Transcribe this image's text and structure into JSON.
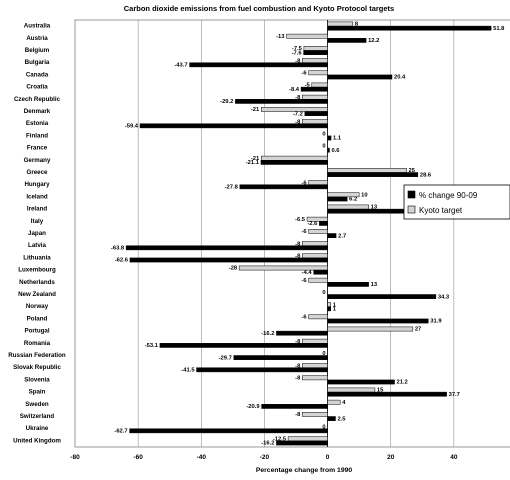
{
  "chart_data": {
    "type": "bar",
    "orientation": "horizontal",
    "title": "Carbon dioxide emissions from fuel combustion and Kyoto Protocol targets",
    "xlabel": "Percentage change from 1990",
    "ylabel": "",
    "xlim": [
      -80,
      60
    ],
    "xticks": [
      -80,
      -60,
      -40,
      -20,
      0,
      20,
      40,
      60
    ],
    "grid": true,
    "legend_position": "right",
    "categories": [
      "Australia",
      "Austria",
      "Belgium",
      "Bulgaria",
      "Canada",
      "Croatia",
      "Czech Republic",
      "Denmark",
      "Estonia",
      "Finland",
      "France",
      "Germany",
      "Greece",
      "Hungary",
      "Iceland",
      "Ireland",
      "Italy",
      "Japan",
      "Latvia",
      "Lithuania",
      "Luxembourg",
      "Netherlands",
      "New Zealand",
      "Norway",
      "Poland",
      "Portugal",
      "Romania",
      "Russian Federation",
      "Slovak Republic",
      "Slovenia",
      "Spain",
      "Sweden",
      "Switzerland",
      "Ukraine",
      "United Kingdom"
    ],
    "series": [
      {
        "name": "% change 90-09",
        "color": "#000000",
        "values": [
          51.8,
          12.2,
          -7.6,
          -43.7,
          20.4,
          -8.4,
          -29.2,
          -7.2,
          -59.4,
          1.1,
          0.6,
          -21.1,
          28.6,
          -27.8,
          6.2,
          32.4,
          -2.6,
          2.7,
          -63.8,
          -62.6,
          -4.4,
          13,
          34.3,
          1,
          31.9,
          -16.2,
          -53.1,
          -29.7,
          -41.5,
          21.2,
          37.7,
          -20.9,
          2.5,
          -62.7,
          -16.2
        ],
        "labels": [
          "51.8",
          "12.2",
          "-7.6",
          "-43.7",
          "20.4",
          "-8.4",
          "-29.2",
          "-7.2",
          "-59.4",
          "1.1",
          "0.6",
          "-21.1",
          "28.6",
          "-27.8",
          "6.2",
          "32.4",
          "-2.6",
          "2.7",
          "-63.8",
          "-62.6",
          "-4.4",
          "13",
          "34.3",
          "1",
          "31.9",
          "-16.2",
          "-53.1",
          "-29.7",
          "-41.5",
          "21.2",
          "37.7",
          "-20.9",
          "2.5",
          "-62.7",
          "-16.2"
        ]
      },
      {
        "name": "Kyoto target",
        "color": "#d4d4d4",
        "values": [
          8,
          -13,
          -7.5,
          -8,
          -6,
          -5,
          -8,
          -21,
          -8,
          0,
          0,
          -21,
          25,
          -6,
          10,
          13,
          -6.5,
          -6,
          -8,
          -8,
          -28,
          -6,
          0,
          1,
          -6,
          27,
          -8,
          0,
          -8,
          -8,
          15,
          4,
          -8,
          0,
          -12.5
        ],
        "labels": [
          "8",
          "-13",
          "-7.5",
          "-8",
          "-6",
          "-5",
          "-8",
          "-21",
          "-8",
          "0",
          "0",
          "-21",
          "25",
          "-6",
          "10",
          "13",
          "-6.5",
          "-6",
          "-8",
          "-8",
          "-28",
          "-6",
          "0",
          "1",
          "-6",
          "27",
          "-8",
          "0",
          "-8",
          "-8",
          "15",
          "4",
          "-8",
          "0",
          "-12.5"
        ]
      }
    ]
  }
}
